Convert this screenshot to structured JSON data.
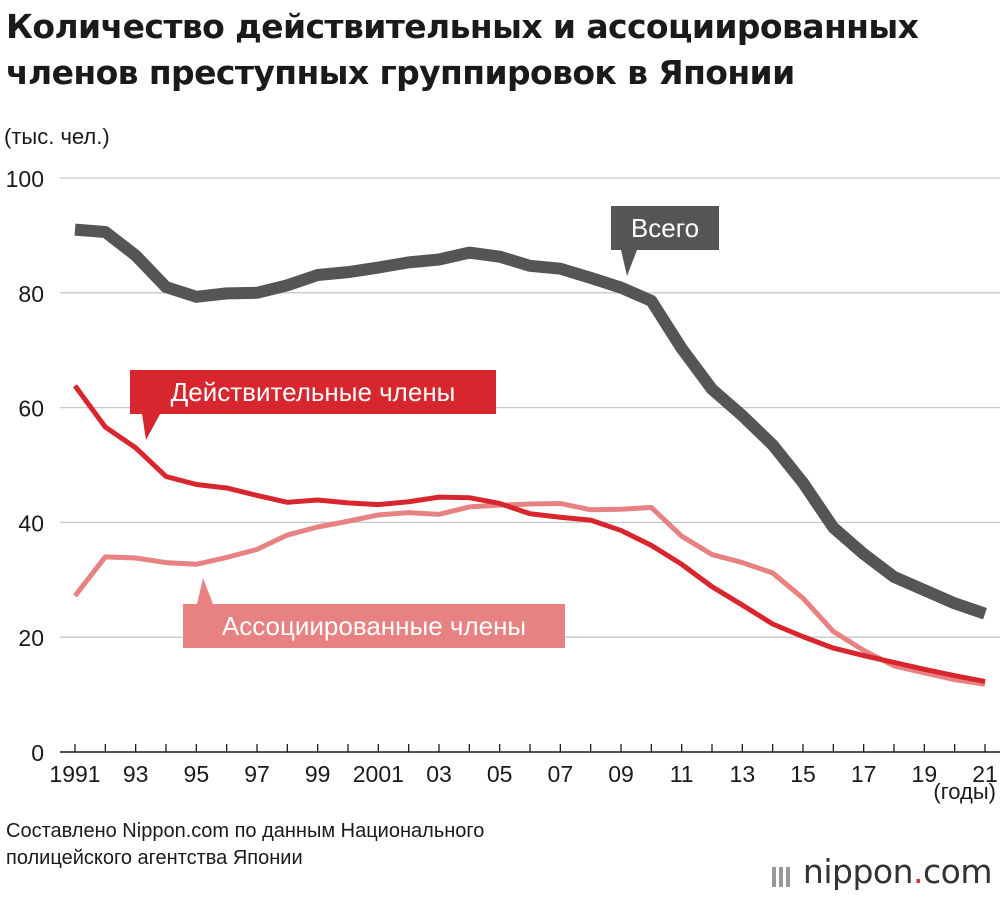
{
  "title": "Количество действительных и ассоциированных членов преступных группировок в Японии",
  "source": [
    "Составлено Nippon.com по данным Национального",
    "полицейского агентства Японии"
  ],
  "brand": {
    "name": "nippon",
    "dot": ".",
    "suffix": "com"
  },
  "colors": {
    "total": "#555555",
    "actual": "#d8262e",
    "associate": "#e88282",
    "grid": "#c8c8c8",
    "text": "#1a1a1a"
  },
  "chart_data": {
    "type": "line",
    "ylabel": "(тыс. чел.)",
    "xlabel": "(годы)",
    "ylim": [
      0,
      100
    ],
    "yticks": [
      "0",
      "20",
      "40",
      "60",
      "80",
      "100"
    ],
    "grid": true,
    "x": [
      1991,
      1992,
      1993,
      1994,
      1995,
      1996,
      1997,
      1998,
      1999,
      2000,
      2001,
      2002,
      2003,
      2004,
      2005,
      2006,
      2007,
      2008,
      2009,
      2010,
      2011,
      2012,
      2013,
      2014,
      2015,
      2016,
      2017,
      2018,
      2019,
      2020,
      2021
    ],
    "xtick_labels": [
      "1991",
      "93",
      "95",
      "97",
      "99",
      "2001",
      "03",
      "05",
      "07",
      "09",
      "11",
      "13",
      "15",
      "17",
      "19",
      "21"
    ],
    "series": [
      {
        "name": "Всего",
        "key": "total",
        "values": [
          91.0,
          90.6,
          86.5,
          81.0,
          79.3,
          79.9,
          80.0,
          81.3,
          83.1,
          83.6,
          84.4,
          85.3,
          85.8,
          87.0,
          86.3,
          84.7,
          84.2,
          82.6,
          80.9,
          78.6,
          70.3,
          63.2,
          58.6,
          53.5,
          46.9,
          39.1,
          34.5,
          30.5,
          28.2,
          25.9,
          24.1
        ]
      },
      {
        "name": "Действительные члены",
        "key": "actual",
        "values": [
          63.8,
          56.6,
          53.0,
          48.0,
          46.6,
          46.0,
          44.7,
          43.5,
          43.9,
          43.4,
          43.1,
          43.6,
          44.4,
          44.3,
          43.3,
          41.5,
          40.9,
          40.4,
          38.6,
          36.0,
          32.7,
          28.8,
          25.6,
          22.3,
          20.1,
          18.1,
          16.8,
          15.6,
          14.4,
          13.3,
          12.3
        ]
      },
      {
        "name": "Ассоциированные члены",
        "key": "associate",
        "values": [
          27.2,
          34.0,
          33.8,
          33.0,
          32.7,
          33.9,
          35.3,
          37.8,
          39.2,
          40.2,
          41.3,
          41.7,
          41.4,
          42.7,
          43.0,
          43.2,
          43.3,
          42.2,
          42.3,
          42.6,
          37.6,
          34.4,
          33.0,
          31.2,
          26.8,
          21.0,
          17.7,
          15.0,
          13.8,
          12.6,
          11.8
        ]
      }
    ]
  }
}
